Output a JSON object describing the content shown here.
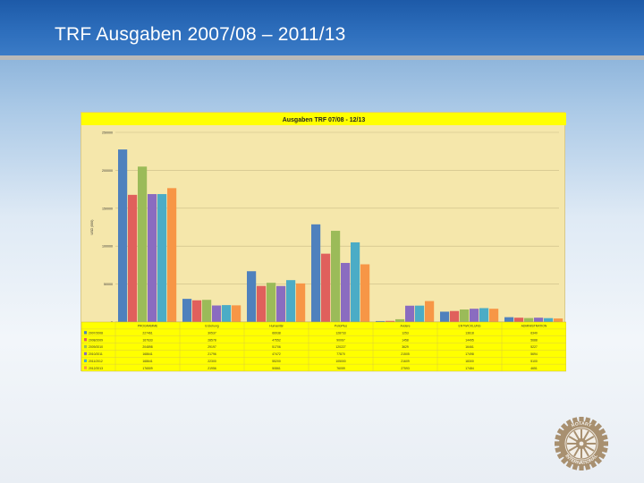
{
  "slide": {
    "title": "TRF Ausgaben 2007/08 – 2011/13"
  },
  "logo": {
    "icon": "rotary-wheel-icon",
    "text_top": "ROTARY",
    "text_bottom": "INTERNATIONAL"
  },
  "colors": {
    "header": "#2a66b3",
    "chart_background": "#f5e7ab",
    "title_bar": "#ffff00",
    "table_background": "#ffff00",
    "logo": "#a89070"
  },
  "chart_data": {
    "type": "bar",
    "title": "Ausgaben TRF 07/08  -  12/13",
    "ylabel": "USD (000)",
    "ylim": [
      0,
      250000
    ],
    "yticks": [
      0,
      50000,
      100000,
      150000,
      200000,
      250000
    ],
    "grid": true,
    "legend": "table-left",
    "categories": [
      "PROGRAMME",
      "Erziehung",
      "Humanitär",
      "PolioPlus",
      "Andere",
      "ENTWICKLUNG",
      "ADMINISTRATION"
    ],
    "series": [
      {
        "name": "2007/2008",
        "color": "#4f81bd",
        "values": [
          227461,
          30537,
          66938,
          128733,
          1253,
          13618,
          6340
        ]
      },
      {
        "name": "2008/2009",
        "color": "#e0605c",
        "values": [
          167633,
          28578,
          47552,
          90067,
          1458,
          14495,
          5688
        ]
      },
      {
        "name": "2009/2010",
        "color": "#9bbb59",
        "values": [
          204898,
          29197,
          51706,
          120227,
          3629,
          16461,
          5227
        ]
      },
      {
        "name": "2010/2011",
        "color": "#8a6cc0",
        "values": [
          168641,
          21796,
          47472,
          77870,
          21505,
          17498,
          5694
        ]
      },
      {
        "name": "2011/2012",
        "color": "#4bacc6",
        "values": [
          168641,
          22300,
          55200,
          105000,
          21609,
          18300,
          5100
        ]
      },
      {
        "name": "2012/2013",
        "color": "#f79646",
        "values": [
          176509,
          21956,
          50861,
          76059,
          27593,
          17484,
          4651
        ]
      }
    ]
  }
}
